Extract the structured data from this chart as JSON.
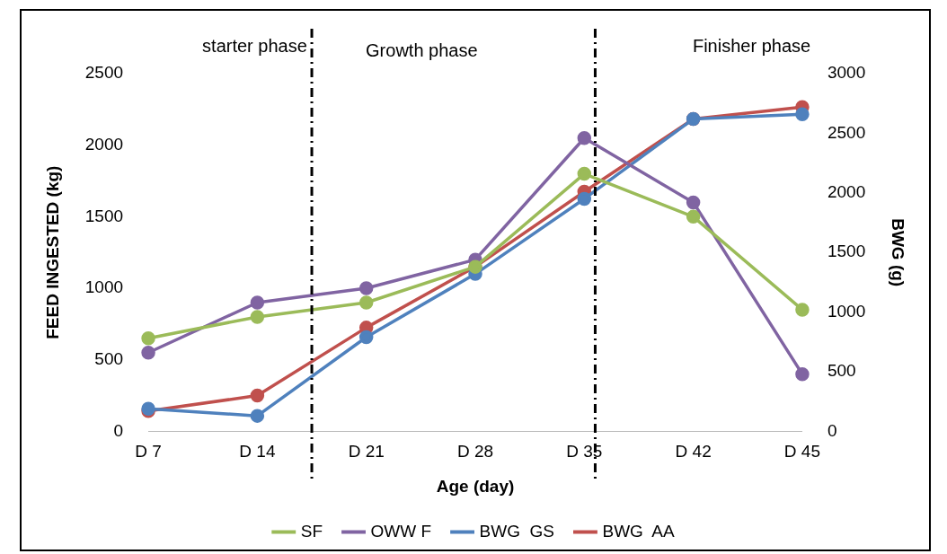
{
  "chart_data": {
    "type": "line",
    "xlabel": "Age (day)",
    "ylabel": "FEED INGESTED (kg)",
    "y2label": "BWG (g)",
    "categories": [
      "D 7",
      "D 14",
      "D 21",
      "D 28",
      "D 35",
      "D 42",
      "D 45"
    ],
    "series": [
      {
        "name": "SF",
        "color": "#9bbb59",
        "values": [
          650,
          800,
          900,
          1150,
          1800,
          1500,
          850
        ]
      },
      {
        "name": "OWW F",
        "color": "#8064a2",
        "values": [
          550,
          900,
          1000,
          1200,
          2050,
          1600,
          400
        ]
      },
      {
        "name": "BWG  GS",
        "color": "#4f81bd",
        "axis": "y2",
        "values": [
          190,
          130,
          790,
          1320,
          1950,
          2620,
          2660
        ]
      },
      {
        "name": "BWG  AA",
        "color": "#c0504d",
        "axis": "y2",
        "values": [
          170,
          300,
          870,
          1380,
          2010,
          2620,
          2720
        ]
      }
    ],
    "ylim": [
      0,
      2500
    ],
    "yticks": [
      0,
      500,
      1000,
      1500,
      2000,
      2500
    ],
    "y2lim": [
      0,
      3000
    ],
    "y2ticks": [
      0,
      500,
      1000,
      1500,
      2000,
      2500,
      3000
    ],
    "annotations": [
      "starter phase",
      "Growth phase",
      "Finisher phase"
    ],
    "grid": false,
    "legend": "bottom",
    "marker": "circle",
    "line_style": "solid"
  }
}
